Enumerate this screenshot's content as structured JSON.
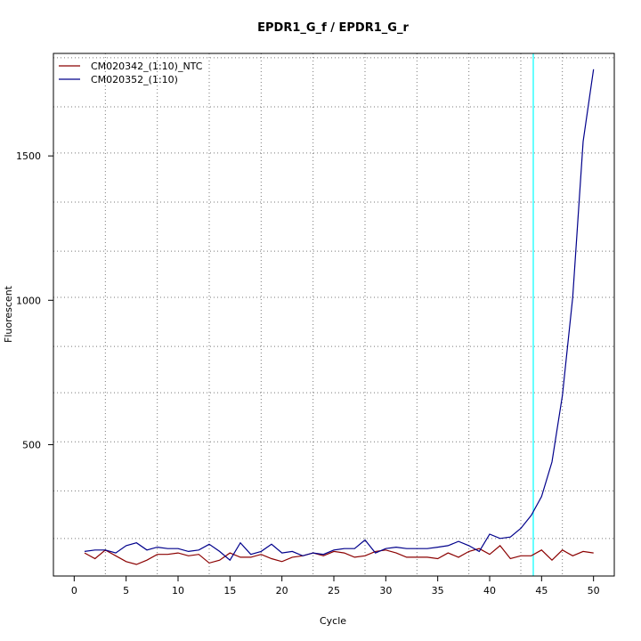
{
  "chart_data": {
    "type": "line",
    "title": "EPDR1_G_f / EPDR1_G_r",
    "xlabel": "Cycle",
    "ylabel": "Fluorescent",
    "xlim": [
      -2,
      52
    ],
    "ylim": [
      45,
      1855
    ],
    "x_ticks": [
      0,
      5,
      10,
      15,
      20,
      25,
      30,
      35,
      40,
      45,
      50
    ],
    "y_ticks": [
      500,
      1000,
      1500
    ],
    "x_grid": [
      3,
      8,
      13,
      18,
      23,
      28,
      33,
      38,
      43,
      47
    ],
    "y_grid": [
      175,
      340,
      510,
      680,
      840,
      1010,
      1170,
      1340,
      1510,
      1670,
      1840
    ],
    "threshold_x": 44.2,
    "threshold_color": "#00ffff",
    "grid": true,
    "legend_position": "top-left",
    "x": [
      1,
      2,
      3,
      4,
      5,
      6,
      7,
      8,
      9,
      10,
      11,
      12,
      13,
      14,
      15,
      16,
      17,
      18,
      19,
      20,
      21,
      22,
      23,
      24,
      25,
      26,
      27,
      28,
      29,
      30,
      31,
      32,
      33,
      34,
      35,
      36,
      37,
      38,
      39,
      40,
      41,
      42,
      43,
      44,
      45,
      46,
      47,
      48,
      49,
      50
    ],
    "series": [
      {
        "name": "CM020342_(1:10)_NTC",
        "color": "#8b0000",
        "values": [
          125,
          105,
          135,
          115,
          95,
          85,
          100,
          120,
          120,
          125,
          115,
          120,
          90,
          100,
          125,
          110,
          110,
          120,
          105,
          95,
          110,
          115,
          125,
          115,
          130,
          125,
          110,
          115,
          130,
          135,
          125,
          110,
          110,
          110,
          105,
          125,
          110,
          130,
          140,
          120,
          150,
          105,
          115,
          115,
          135,
          100,
          135,
          115,
          130,
          125
        ]
      },
      {
        "name": "CM020352_(1:10)",
        "color": "#00008b",
        "values": [
          130,
          135,
          135,
          125,
          150,
          160,
          135,
          145,
          140,
          140,
          130,
          135,
          155,
          130,
          100,
          160,
          120,
          130,
          155,
          125,
          130,
          115,
          125,
          120,
          135,
          140,
          140,
          170,
          125,
          140,
          145,
          140,
          140,
          140,
          145,
          150,
          165,
          150,
          130,
          190,
          175,
          180,
          210,
          255,
          320,
          440,
          670,
          1010,
          1550,
          1800
        ]
      }
    ]
  }
}
